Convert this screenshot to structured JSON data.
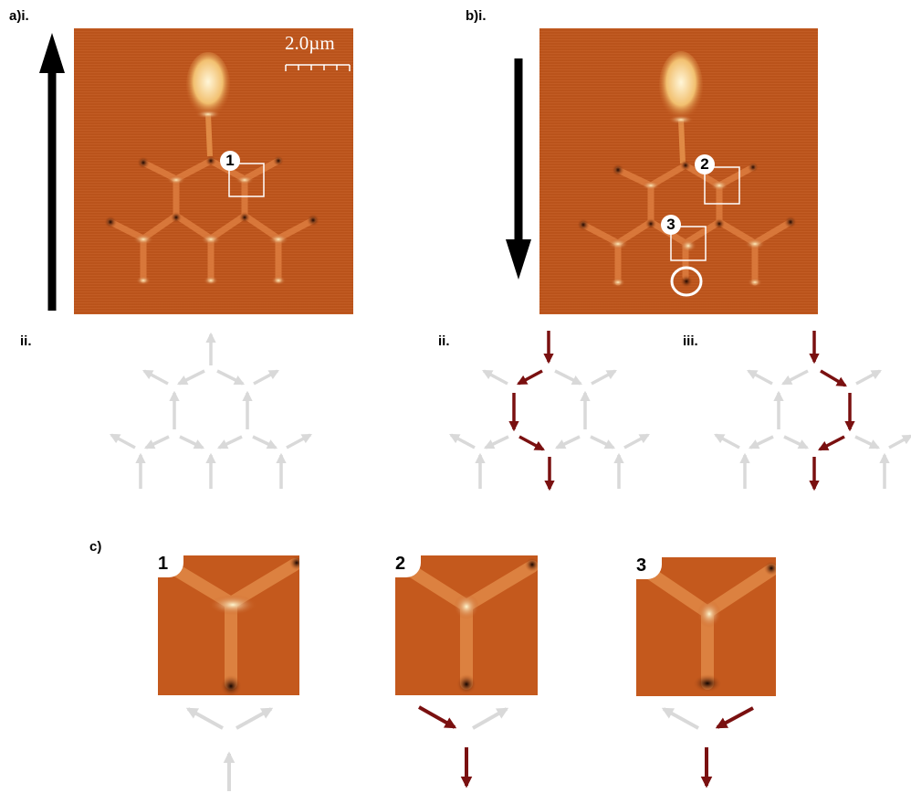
{
  "panel_labels": {
    "a_i": "a)i.",
    "a_ii": "ii.",
    "b_i": "b)i.",
    "b_ii": "ii.",
    "b_iii": "iii.",
    "c": "c)"
  },
  "scale_bar": {
    "label": "2.0µm"
  },
  "markers": {
    "m1": "1",
    "m2": "2",
    "m3": "3"
  },
  "crops": [
    {
      "label": "1"
    },
    {
      "label": "2"
    },
    {
      "label": "3"
    }
  ],
  "colors": {
    "afm_base": "#c0561c",
    "arrow_grey": "#d9d9d9",
    "arrow_red": "#7a1010",
    "arrow_black": "#000000"
  }
}
